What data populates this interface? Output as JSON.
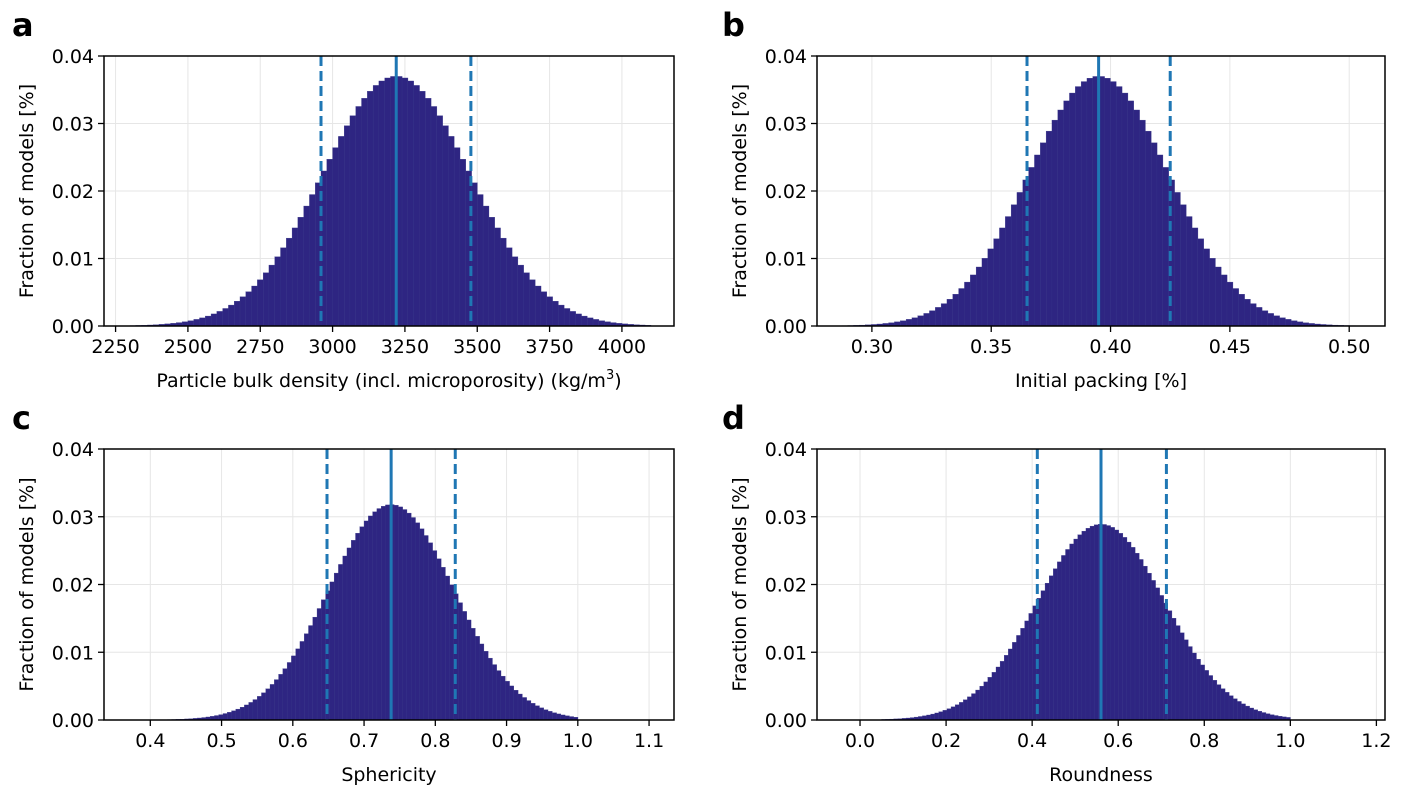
{
  "chart_data": [
    {
      "panel": "a",
      "type": "bar",
      "xlabel": "Particle bulk density (incl. microporosity) (kg/m",
      "xlabel_superscript": "3",
      "xlabel_suffix": ")",
      "ylabel": "Fraction of models [%]",
      "xlim": [
        2210,
        4180
      ],
      "ylim": [
        0,
        0.04
      ],
      "xticks": [
        2250,
        2500,
        2750,
        3000,
        3250,
        3500,
        3750,
        4000
      ],
      "xtick_labels": [
        "2250",
        "2500",
        "2750",
        "3000",
        "3250",
        "3500",
        "3750",
        "4000"
      ],
      "yticks": [
        0,
        0.01,
        0.02,
        0.03,
        0.04
      ],
      "ytick_labels": [
        "0.00",
        "0.01",
        "0.02",
        "0.03",
        "0.04"
      ],
      "grid": true,
      "distribution": {
        "mean": 3220,
        "sd": 256,
        "range": [
          2300,
          4100
        ],
        "bins": 90,
        "peak": 0.037
      },
      "mean_line": 3220,
      "interval_lines": [
        2960,
        3478
      ],
      "bar_color": "#2e2582",
      "line_color": "#1f77b4"
    },
    {
      "panel": "b",
      "type": "bar",
      "xlabel": "Initial packing [%]",
      "ylabel": "Fraction of models [%]",
      "xlim": [
        0.277,
        0.515
      ],
      "ylim": [
        0,
        0.04
      ],
      "xticks": [
        0.3,
        0.35,
        0.4,
        0.45,
        0.5
      ],
      "xtick_labels": [
        "0.30",
        "0.35",
        "0.40",
        "0.45",
        "0.50"
      ],
      "yticks": [
        0,
        0.01,
        0.02,
        0.03,
        0.04
      ],
      "ytick_labels": [
        "0.00",
        "0.01",
        "0.02",
        "0.03",
        "0.04"
      ],
      "grid": true,
      "distribution": {
        "mean": 0.395,
        "sd": 0.0295,
        "range": [
          0.285,
          0.505
        ],
        "bins": 90,
        "peak": 0.037
      },
      "mean_line": 0.395,
      "interval_lines": [
        0.365,
        0.425
      ],
      "bar_color": "#2e2582",
      "line_color": "#1f77b4"
    },
    {
      "panel": "c",
      "type": "bar",
      "xlabel": "Sphericity",
      "ylabel": "Fraction of models [%]",
      "xlim": [
        0.335,
        1.135
      ],
      "ylim": [
        0,
        0.04
      ],
      "xticks": [
        0.4,
        0.5,
        0.6,
        0.7,
        0.8,
        0.9,
        1.0,
        1.1
      ],
      "xtick_labels": [
        "0.4",
        "0.5",
        "0.6",
        "0.7",
        "0.8",
        "0.9",
        "1.0",
        "1.1"
      ],
      "yticks": [
        0,
        0.01,
        0.02,
        0.03,
        0.04
      ],
      "ytick_labels": [
        "0.00",
        "0.01",
        "0.02",
        "0.03",
        "0.04"
      ],
      "grid": true,
      "distribution": {
        "mean": 0.738,
        "sd": 0.088,
        "range": [
          0.4,
          1.0
        ],
        "bins": 100,
        "peak": 0.0318
      },
      "mean_line": 0.738,
      "interval_lines": [
        0.648,
        0.828
      ],
      "bar_color": "#2e2582",
      "line_color": "#1f77b4"
    },
    {
      "panel": "d",
      "type": "bar",
      "xlabel": "Roundness",
      "ylabel": "Fraction of models [%]",
      "xlim": [
        -0.1,
        1.22
      ],
      "ylim": [
        0,
        0.04
      ],
      "xticks": [
        0.0,
        0.2,
        0.4,
        0.6,
        0.8,
        1.0,
        1.2
      ],
      "xtick_labels": [
        "0.0",
        "0.2",
        "0.4",
        "0.6",
        "0.8",
        "1.0",
        "1.2"
      ],
      "yticks": [
        0,
        0.01,
        0.02,
        0.03,
        0.04
      ],
      "ytick_labels": [
        "0.00",
        "0.01",
        "0.02",
        "0.03",
        "0.04"
      ],
      "grid": true,
      "distribution": {
        "mean": 0.56,
        "sd": 0.148,
        "range": [
          0.05,
          1.0
        ],
        "bins": 100,
        "peak": 0.0289
      },
      "mean_line": 0.56,
      "interval_lines": [
        0.412,
        0.712
      ],
      "bar_color": "#2e2582",
      "line_color": "#1f77b4"
    }
  ]
}
